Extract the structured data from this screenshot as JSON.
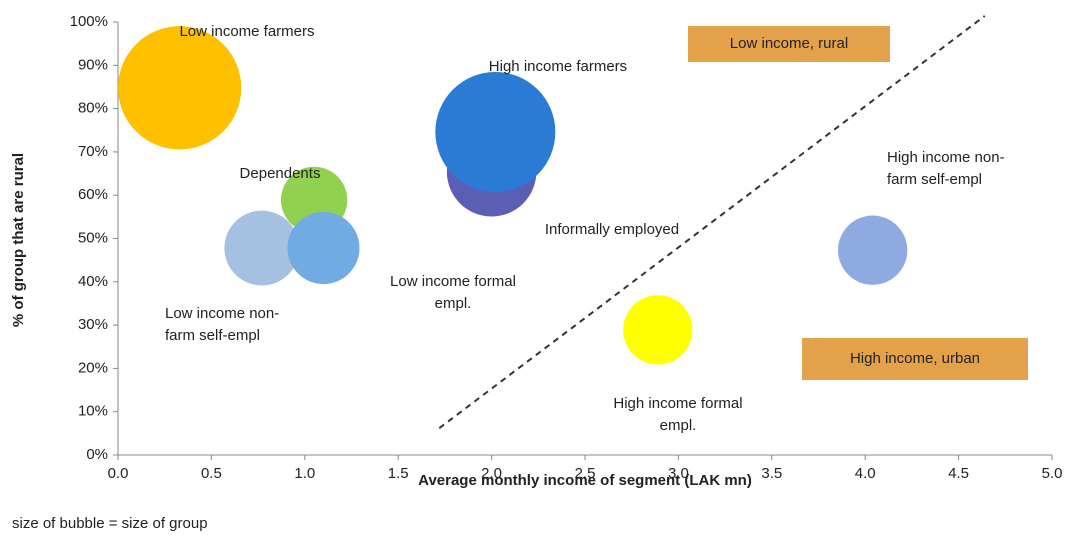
{
  "chart_data": {
    "type": "bubble",
    "xlabel": "Average monthly income of segment (LAK mn)",
    "ylabel": "% of group that are rural",
    "footnote": "size of bubble = size of group",
    "xlim": [
      0,
      5
    ],
    "ylim": [
      0,
      100
    ],
    "xticks": [
      {
        "value": 0,
        "label": "0.0"
      },
      0.5,
      {
        "value": 1,
        "label": "1.0"
      },
      1.5,
      {
        "value": 2,
        "label": "2.0"
      },
      2.5,
      {
        "value": 3,
        "label": "3.0"
      },
      3.5,
      {
        "value": 4,
        "label": "4.0"
      },
      4.5,
      {
        "value": 5,
        "label": "5.0"
      }
    ],
    "yticks": [
      {
        "value": 0,
        "label": "0%"
      },
      {
        "value": 10,
        "label": "10%"
      },
      {
        "value": 20,
        "label": "20%"
      },
      {
        "value": 30,
        "label": "30%"
      },
      {
        "value": 40,
        "label": "40%"
      },
      {
        "value": 50,
        "label": "50%"
      },
      {
        "value": 60,
        "label": "60%"
      },
      {
        "value": 70,
        "label": "70%"
      },
      {
        "value": 80,
        "label": "80%"
      },
      {
        "value": 90,
        "label": "90%"
      },
      {
        "value": 100,
        "label": "100%"
      }
    ],
    "grid": false,
    "series": [
      {
        "name": "Low income farmers",
        "color": "#ffc000",
        "x": [
          0.33
        ],
        "values": [
          84.8
        ],
        "sizes": [
          38
        ]
      },
      {
        "name": "Informally employed",
        "color": "#5a5fb5",
        "x": [
          2.0
        ],
        "values": [
          65.4
        ],
        "sizes": [
          20
        ]
      },
      {
        "name": "High income farmers",
        "color": "#2b7bd4",
        "x": [
          2.02
        ],
        "values": [
          74.6
        ],
        "sizes": [
          36
        ]
      },
      {
        "name": "Dependents",
        "color": "#92d050",
        "x": [
          1.05
        ],
        "values": [
          58.9
        ],
        "sizes": [
          11
        ]
      },
      {
        "name": "Low income non-\nfarm self-empl",
        "color": "#a5c0e0",
        "x": [
          0.77
        ],
        "values": [
          47.8
        ],
        "sizes": [
          14
        ]
      },
      {
        "name": "Low income formal\nempl.",
        "color": "#72aae2",
        "x": [
          1.1
        ],
        "values": [
          47.8
        ],
        "sizes": [
          13
        ]
      },
      {
        "name": "High income formal\nempl.",
        "color": "#ffff00",
        "x": [
          2.89
        ],
        "values": [
          28.9
        ],
        "sizes": [
          12
        ]
      },
      {
        "name": "High income non-\nfarm self-empl",
        "color": "#8eaae0",
        "x": [
          4.04
        ],
        "values": [
          47.3
        ],
        "sizes": [
          12
        ]
      }
    ],
    "reference_line": {
      "x": [
        1.72,
        4.64
      ],
      "y": [
        6.2,
        101.4
      ]
    },
    "annotations": [
      {
        "text": "Low income, rural",
        "color": "#e3a24a"
      },
      {
        "text": "High income, urban",
        "color": "#e3a24a"
      }
    ]
  }
}
